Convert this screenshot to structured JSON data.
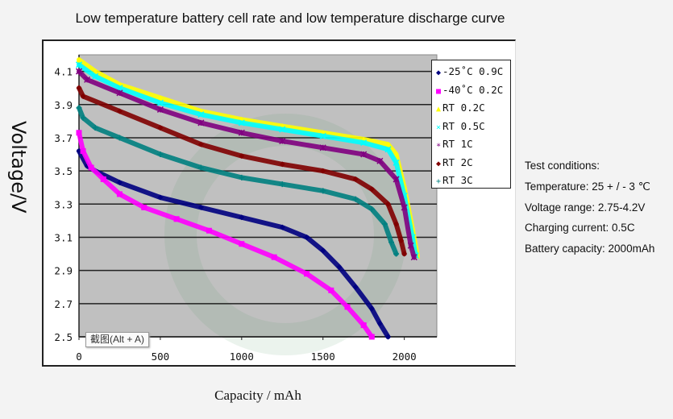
{
  "chart_data": {
    "type": "scatter",
    "title": "Low temperature battery cell rate and low temperature discharge curve",
    "xlabel": "Capacity / mAh",
    "ylabel": "Voltage/V",
    "xlim": [
      0,
      2200
    ],
    "ylim": [
      2.5,
      4.2
    ],
    "xticks": [
      "0",
      "500",
      "1000",
      "1500",
      "2000"
    ],
    "yticks": [
      "2.5",
      "2.7",
      "2.9",
      "3.1",
      "3.3",
      "3.5",
      "3.7",
      "3.9",
      "4.1"
    ],
    "grid": "horizontal",
    "plot_background": "#c0c0c0",
    "legend_position": "right",
    "series": [
      {
        "name": "-25˚C 0.9C",
        "color": "#000080",
        "marker": "diamond",
        "symbol": "◆",
        "x": [
          0,
          50,
          100,
          250,
          500,
          750,
          1000,
          1250,
          1400,
          1500,
          1600,
          1700,
          1800,
          1850,
          1900
        ],
        "y": [
          3.62,
          3.53,
          3.5,
          3.43,
          3.34,
          3.28,
          3.22,
          3.16,
          3.1,
          3.02,
          2.92,
          2.8,
          2.67,
          2.58,
          2.5
        ]
      },
      {
        "name": "-40˚C 0.2C",
        "color": "#ff00ff",
        "marker": "square",
        "symbol": "■",
        "x": [
          0,
          25,
          75,
          150,
          250,
          400,
          600,
          800,
          1000,
          1200,
          1400,
          1550,
          1650,
          1750,
          1800
        ],
        "y": [
          3.73,
          3.62,
          3.52,
          3.45,
          3.36,
          3.28,
          3.21,
          3.14,
          3.06,
          2.98,
          2.88,
          2.78,
          2.68,
          2.57,
          2.5
        ]
      },
      {
        "name": "RT 0.2C",
        "color": "#ffff00",
        "marker": "triangle",
        "symbol": "▲",
        "x": [
          0,
          100,
          250,
          500,
          750,
          1000,
          1250,
          1500,
          1750,
          1900,
          1950,
          2000,
          2050,
          2080
        ],
        "y": [
          4.17,
          4.1,
          4.02,
          3.94,
          3.86,
          3.81,
          3.77,
          3.73,
          3.69,
          3.66,
          3.6,
          3.4,
          3.15,
          2.99
        ]
      },
      {
        "name": "RT 0.5C",
        "color": "#00ffff",
        "marker": "x",
        "symbol": "×",
        "x": [
          0,
          100,
          250,
          500,
          750,
          1000,
          1250,
          1500,
          1750,
          1900,
          1950,
          2000,
          2050,
          2070
        ],
        "y": [
          4.14,
          4.07,
          4.0,
          3.91,
          3.84,
          3.79,
          3.75,
          3.71,
          3.67,
          3.63,
          3.55,
          3.35,
          3.1,
          2.99
        ]
      },
      {
        "name": "RT 1C",
        "color": "#800080",
        "marker": "star",
        "symbol": "∗",
        "x": [
          0,
          50,
          250,
          500,
          750,
          1000,
          1250,
          1500,
          1750,
          1850,
          1950,
          2000,
          2040,
          2060
        ],
        "y": [
          4.1,
          4.05,
          3.97,
          3.87,
          3.79,
          3.73,
          3.68,
          3.64,
          3.6,
          3.56,
          3.45,
          3.28,
          3.05,
          2.98
        ]
      },
      {
        "name": "RT 2C",
        "color": "#800000",
        "marker": "diamond",
        "symbol": "◆",
        "x": [
          0,
          25,
          250,
          500,
          750,
          1000,
          1250,
          1500,
          1700,
          1800,
          1900,
          1950,
          1980,
          2000
        ],
        "y": [
          4.0,
          3.95,
          3.86,
          3.76,
          3.66,
          3.59,
          3.54,
          3.5,
          3.45,
          3.39,
          3.3,
          3.18,
          3.08,
          3.0
        ]
      },
      {
        "name": "RT 3C",
        "color": "#008080",
        "marker": "plus",
        "symbol": "+",
        "x": [
          0,
          25,
          100,
          250,
          500,
          750,
          1000,
          1250,
          1500,
          1700,
          1800,
          1880,
          1920,
          1950
        ],
        "y": [
          3.88,
          3.82,
          3.76,
          3.7,
          3.6,
          3.52,
          3.46,
          3.42,
          3.38,
          3.33,
          3.27,
          3.18,
          3.07,
          3.0
        ]
      }
    ]
  },
  "conditions": {
    "heading": "Test conditions:",
    "temperature": "Temperature: 25 + / - 3 ℃",
    "voltage_range": "Voltage range: 2.75-4.2V",
    "charging_current": "Charging current: 0.5C",
    "battery_capacity": "Battery capacity: 2000mAh"
  },
  "tooltip": "截图(Alt + A)"
}
